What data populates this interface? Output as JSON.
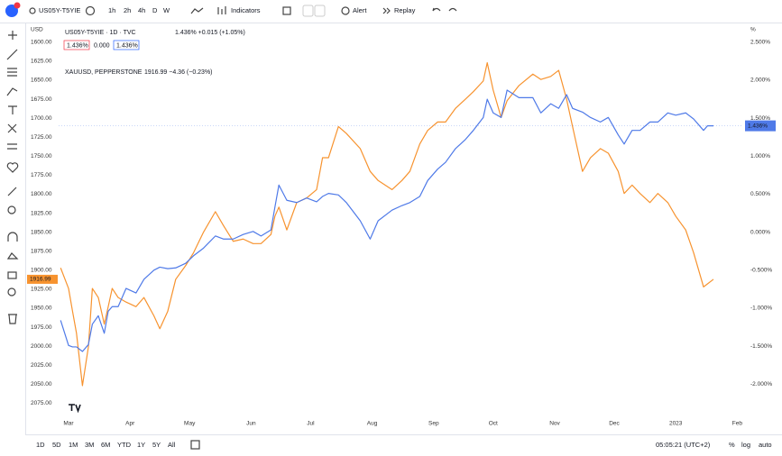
{
  "toolbar": {
    "symbol": "US05Y-T5YIE",
    "intervals": [
      "1h",
      "2h",
      "4h",
      "D",
      "W"
    ],
    "indicators": "Indicators",
    "alert": "Alert",
    "replay": "Replay"
  },
  "bottom_bar": {
    "ranges": [
      "1D",
      "5D",
      "1M",
      "3M",
      "6M",
      "YTD",
      "1Y",
      "5Y",
      "All"
    ],
    "clock": "05:05:21 (UTC+2)",
    "options": [
      "%",
      "log",
      "auto"
    ]
  },
  "chart_data": {
    "type": "line",
    "left_axis_unit": "USD",
    "right_axis_unit": "%",
    "buttons": [
      "1.436%",
      "0.000",
      "1.436%"
    ],
    "x": [
      1,
      5,
      7,
      9,
      12,
      15,
      17,
      20,
      23,
      25,
      27,
      30,
      34,
      39,
      43,
      48,
      51,
      55,
      59,
      64,
      68,
      73,
      79,
      83,
      88,
      93,
      98,
      102,
      107,
      109,
      111,
      115,
      120,
      125,
      130,
      133,
      136,
      141,
      145,
      152,
      157,
      161,
      168,
      173,
      177,
      182,
      186,
      191,
      195,
      200,
      205,
      209,
      214,
      216,
      219,
      223,
      226,
      232,
      239,
      243,
      248,
      252,
      256,
      259,
      264,
      268,
      273,
      277,
      282,
      285,
      289,
      293,
      298,
      302,
      307,
      311,
      316,
      320,
      325,
      327,
      330
    ],
    "xlim": [
      0,
      345
    ],
    "xticks": [
      {
        "value": 5,
        "label": "Mar"
      },
      {
        "value": 36,
        "label": "Apr"
      },
      {
        "value": 66,
        "label": "May"
      },
      {
        "value": 97,
        "label": "Jun"
      },
      {
        "value": 127,
        "label": "Jul"
      },
      {
        "value": 158,
        "label": "Aug"
      },
      {
        "value": 189,
        "label": "Sep"
      },
      {
        "value": 219,
        "label": "Oct"
      },
      {
        "value": 250,
        "label": "Nov"
      },
      {
        "value": 280,
        "label": "Dec"
      },
      {
        "value": 311,
        "label": "2023"
      },
      {
        "value": 342,
        "label": "Feb"
      }
    ],
    "ylim": [
      1580,
      2090
    ],
    "y_inverted": true,
    "yticks": [
      {
        "value": 1600,
        "label": "1600.00"
      },
      {
        "value": 1625,
        "label": "1625.00"
      },
      {
        "value": 1650,
        "label": "1650.00"
      },
      {
        "value": 1675,
        "label": "1675.00"
      },
      {
        "value": 1700,
        "label": "1700.00"
      },
      {
        "value": 1725,
        "label": "1725.00"
      },
      {
        "value": 1750,
        "label": "1750.00"
      },
      {
        "value": 1775,
        "label": "1775.00"
      },
      {
        "value": 1800,
        "label": "1800.00"
      },
      {
        "value": 1825,
        "label": "1825.00"
      },
      {
        "value": 1850,
        "label": "1850.00"
      },
      {
        "value": 1875,
        "label": "1875.00"
      },
      {
        "value": 1900,
        "label": "1900.00"
      },
      {
        "value": 1925,
        "label": "1925.00"
      },
      {
        "value": 1950,
        "label": "1950.00"
      },
      {
        "value": 1975,
        "label": "1975.00"
      },
      {
        "value": 2000,
        "label": "2000.00"
      },
      {
        "value": 2025,
        "label": "2025.00"
      },
      {
        "value": 2050,
        "label": "2050.00"
      },
      {
        "value": 2075,
        "label": "2075.00"
      }
    ],
    "y2lim": [
      -2.4,
      2.7
    ],
    "y2ticks": [
      {
        "value": 2.5,
        "label": "2.500%"
      },
      {
        "value": 2,
        "label": "2.000%"
      },
      {
        "value": 1.5,
        "label": "1.500%"
      },
      {
        "value": 1,
        "label": "1.000%"
      },
      {
        "value": 0.5,
        "label": "0.500%"
      },
      {
        "value": 0,
        "label": "0.000%"
      },
      {
        "value": -0.5,
        "label": "-0.500%"
      },
      {
        "value": -1,
        "label": "-1.000%"
      },
      {
        "value": -1.5,
        "label": "-1.500%"
      },
      {
        "value": -2,
        "label": "-2.000%"
      }
    ],
    "grid": false,
    "series": [
      {
        "name": "US05Y-T5YIE · 1D · TVC",
        "quote": "1.436% +0.015 (+1.05%)",
        "price_tag": "1.436%",
        "color": "#4f7ae8",
        "axis": "y2",
        "values": [
          -1.16,
          -1.49,
          -1.51,
          -1.51,
          -1.57,
          -1.48,
          -1.21,
          -1.1,
          -1.33,
          -1.04,
          -0.98,
          -0.98,
          -0.74,
          -0.8,
          -0.62,
          -0.5,
          -0.46,
          -0.48,
          -0.47,
          -0.41,
          -0.31,
          -0.21,
          -0.05,
          -0.09,
          -0.09,
          -0.03,
          0.01,
          -0.05,
          0.03,
          0.33,
          0.62,
          0.42,
          0.39,
          0.45,
          0.4,
          0.47,
          0.51,
          0.49,
          0.39,
          0.15,
          -0.09,
          0.15,
          0.29,
          0.35,
          0.39,
          0.47,
          0.68,
          0.83,
          0.92,
          1.1,
          1.22,
          1.34,
          1.51,
          1.75,
          1.57,
          1.51,
          1.87,
          1.77,
          1.77,
          1.57,
          1.69,
          1.63,
          1.81,
          1.63,
          1.58,
          1.51,
          1.45,
          1.51,
          1.28,
          1.16,
          1.34,
          1.34,
          1.45,
          1.45,
          1.57,
          1.54,
          1.57,
          1.49,
          1.34,
          1.4,
          1.4
        ]
      },
      {
        "name": "XAUUSD, PEPPERSTONE",
        "quote": "1916.99 −4.36 (−0.23%)",
        "price_tag": "1916.99",
        "color": "#f7932f",
        "values": [
          1897,
          1924,
          1954,
          1983,
          2052,
          2001,
          1924,
          1936,
          1971,
          1948,
          1924,
          1936,
          1942,
          1948,
          1936,
          1960,
          1977,
          1954,
          1912,
          1894,
          1877,
          1850,
          1823,
          1841,
          1862,
          1859,
          1865,
          1865,
          1853,
          1829,
          1817,
          1847,
          1811,
          1805,
          1794,
          1752,
          1752,
          1711,
          1720,
          1740,
          1770,
          1782,
          1794,
          1782,
          1770,
          1734,
          1716,
          1705,
          1705,
          1687,
          1675,
          1665,
          1651,
          1627,
          1663,
          1699,
          1677,
          1657,
          1642,
          1649,
          1645,
          1637,
          1675,
          1711,
          1770,
          1752,
          1740,
          1746,
          1770,
          1799,
          1788,
          1799,
          1811,
          1799,
          1811,
          1829,
          1847,
          1877,
          1922,
          1918,
          1912
        ]
      }
    ]
  }
}
